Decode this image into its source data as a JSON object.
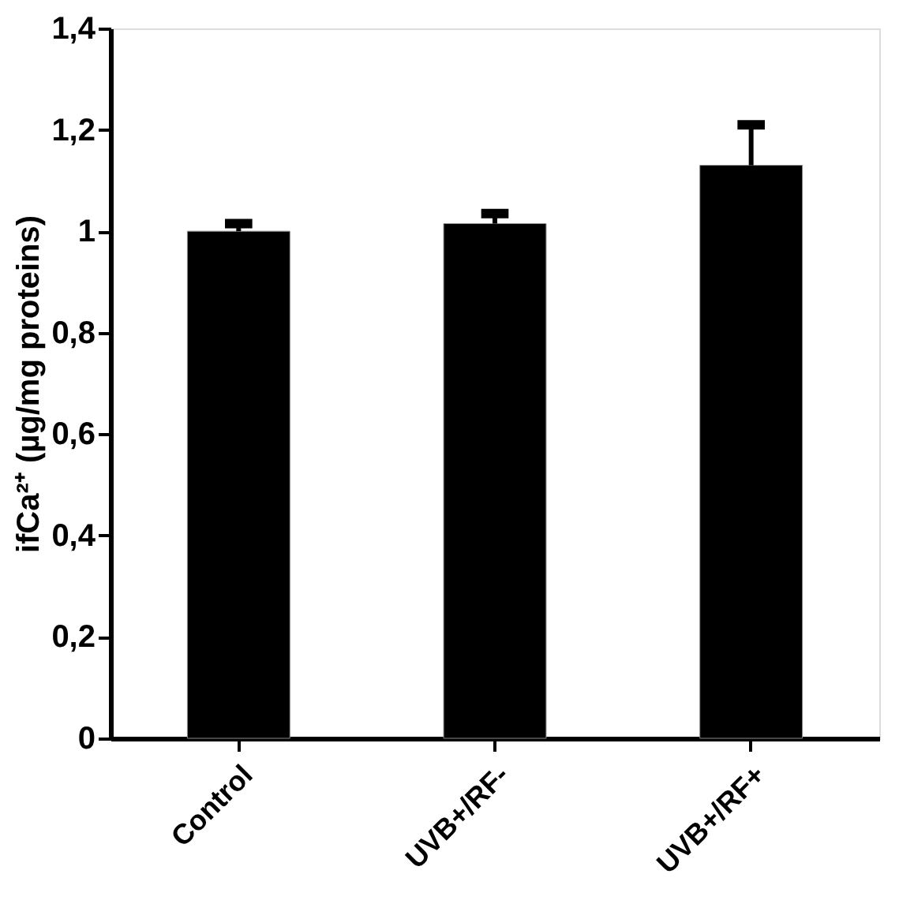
{
  "chart_data": {
    "type": "bar",
    "ylabel": "ifCa²⁺ (µg/mg proteins)",
    "categories": [
      "Control",
      "UVB+/RF-",
      "UVB+/RF+"
    ],
    "series": [
      {
        "color": "#000000",
        "values": [
          1.0,
          1.015,
          1.13
        ],
        "errors": [
          0.015,
          0.02,
          0.08
        ]
      }
    ],
    "ylim": [
      0,
      1.4
    ],
    "yticks": [
      0,
      {
        "value": 0.2,
        "label": "0,2"
      },
      {
        "value": 0.4,
        "label": "0,4"
      },
      {
        "value": 0.6,
        "label": "0,6"
      },
      {
        "value": 0.8,
        "label": "0,8"
      },
      1,
      {
        "value": 1.2,
        "label": "1,2"
      },
      {
        "value": 1.4,
        "label": "1,4"
      }
    ],
    "grid": false
  }
}
